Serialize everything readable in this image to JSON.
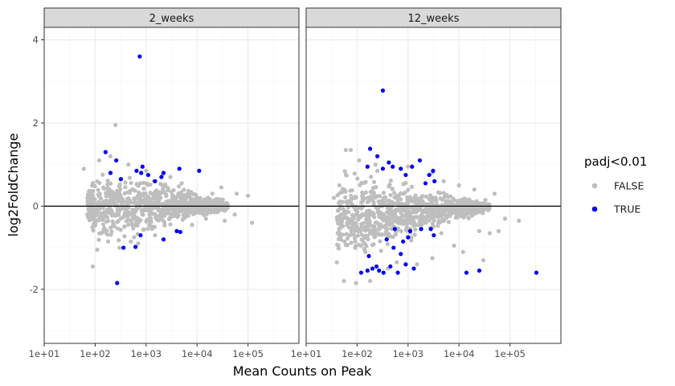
{
  "chart_data": {
    "type": "scatter",
    "xlabel": "Mean Counts on Peak",
    "ylabel": "log2FoldChange",
    "x_scale": "log10",
    "xlim": [
      10,
      1000000
    ],
    "ylim": [
      -3.3,
      4.3
    ],
    "x_ticks": [
      10,
      100,
      1000,
      10000,
      100000
    ],
    "x_tick_labels": [
      "1e+01",
      "1e+02",
      "1e+03",
      "1e+04",
      "1e+05"
    ],
    "y_ticks": [
      -2,
      0,
      2,
      4
    ],
    "y_tick_labels": [
      "-2",
      "0",
      "2",
      "4"
    ],
    "grid": true,
    "reference_line": 0,
    "legend": {
      "title": "padj<0.01",
      "placement": "right",
      "items": [
        {
          "label": "FALSE",
          "color": "#bebebe"
        },
        {
          "label": "TRUE",
          "color": "#0000ee"
        }
      ]
    },
    "panels": [
      {
        "title": "2_weeks",
        "series": [
          {
            "name": "FALSE",
            "color": "#bebebe",
            "points": [
              [
                250,
                1.95
              ],
              [
                90,
                -1.45
              ],
              [
                60,
                0.9
              ],
              [
                120,
                1.1
              ],
              [
                200,
                1.2
              ],
              [
                2100,
                0.75
              ],
              [
                100000,
                0.25
              ],
              [
                120000,
                -0.4
              ],
              [
                60000,
                0.3
              ],
              [
                55000,
                -0.2
              ],
              [
                30000,
                0.45
              ],
              [
                35000,
                -0.35
              ],
              [
                20000,
                0.3
              ],
              [
                15000,
                -0.3
              ],
              [
                70,
                -0.2
              ],
              [
                80,
                0.3
              ],
              [
                110,
                -1.05
              ],
              [
                300,
                -1.0
              ],
              [
                500,
                -0.85
              ],
              [
                1000,
                0.85
              ],
              [
                3000,
                0.7
              ],
              [
                5000,
                0.55
              ],
              [
                8000,
                -0.45
              ],
              [
                450,
                1.0
              ],
              [
                180,
                -0.85
              ],
              [
                700,
                -0.9
              ],
              [
                1500,
                -0.7
              ]
            ],
            "core": [
              [
                70,
                -0.3,
                0.4
              ],
              [
                100,
                -1.0,
                0.9
              ],
              [
                200,
                -1.0,
                1.0
              ],
              [
                400,
                -0.95,
                0.9
              ],
              [
                800,
                -0.8,
                0.85
              ],
              [
                1600,
                -0.7,
                0.75
              ],
              [
                3200,
                -0.6,
                0.6
              ],
              [
                6400,
                -0.5,
                0.5
              ],
              [
                12800,
                -0.35,
                0.35
              ],
              [
                25000,
                -0.25,
                0.25
              ],
              [
                40000,
                -0.12,
                0.12
              ]
            ]
          },
          {
            "name": "TRUE",
            "color": "#0000ee",
            "points": [
              [
                750,
                3.6
              ],
              [
                160,
                1.3
              ],
              [
                260,
                1.1
              ],
              [
                850,
                0.95
              ],
              [
                650,
                0.85
              ],
              [
                800,
                0.8
              ],
              [
                1100,
                0.75
              ],
              [
                2200,
                0.8
              ],
              [
                2000,
                0.7
              ],
              [
                4500,
                0.9
              ],
              [
                11000,
                0.85
              ],
              [
                200,
                0.8
              ],
              [
                320,
                0.65
              ],
              [
                1500,
                0.6
              ],
              [
                270,
                -1.85
              ],
              [
                360,
                -1.0
              ],
              [
                620,
                -0.98
              ],
              [
                780,
                -0.7
              ],
              [
                2200,
                -0.8
              ],
              [
                4700,
                -0.62
              ],
              [
                4000,
                -0.6
              ]
            ]
          }
        ]
      },
      {
        "title": "12_weeks",
        "series": [
          {
            "name": "FALSE",
            "color": "#bebebe",
            "points": [
              [
                95,
                -1.85
              ],
              [
                180,
                -1.8
              ],
              [
                55,
                -1.8
              ],
              [
                40,
                -1.35
              ],
              [
                60,
                1.35
              ],
              [
                75,
                1.35
              ],
              [
                110,
                1.1
              ],
              [
                230,
                1.0
              ],
              [
                3000,
                0.8
              ],
              [
                5000,
                0.6
              ],
              [
                10000,
                0.5
              ],
              [
                20000,
                0.4
              ],
              [
                50000,
                0.3
              ],
              [
                80000,
                -0.3
              ],
              [
                60000,
                -0.6
              ],
              [
                40000,
                -0.65
              ],
              [
                25000,
                -0.6
              ],
              [
                150000,
                -0.35
              ],
              [
                30000,
                -1.3
              ],
              [
                12000,
                -1.1
              ],
              [
                8000,
                -0.95
              ],
              [
                3000,
                -1.25
              ],
              [
                1500,
                -1.4
              ],
              [
                4500,
                -0.65
              ],
              [
                1000,
                0.95
              ],
              [
                33000,
                0.15
              ],
              [
                400,
                -1.5
              ],
              [
                600,
                -1.35
              ],
              [
                250,
                0.85
              ],
              [
                45,
                0.5
              ],
              [
                35,
                0.2
              ]
            ],
            "core": [
              [
                40,
                -1.3,
                0.85
              ],
              [
                80,
                -1.6,
                1.2
              ],
              [
                160,
                -1.6,
                1.1
              ],
              [
                320,
                -1.4,
                1.0
              ],
              [
                640,
                -1.1,
                0.8
              ],
              [
                1280,
                -0.9,
                0.65
              ],
              [
                2560,
                -0.7,
                0.5
              ],
              [
                5120,
                -0.55,
                0.4
              ],
              [
                10240,
                -0.4,
                0.3
              ],
              [
                20000,
                -0.28,
                0.2
              ],
              [
                40000,
                -0.15,
                0.12
              ]
            ]
          },
          {
            "name": "TRUE",
            "color": "#0000ee",
            "points": [
              [
                320,
                2.78
              ],
              [
                180,
                1.38
              ],
              [
                250,
                1.2
              ],
              [
                420,
                1.05
              ],
              [
                500,
                0.95
              ],
              [
                320,
                0.9
              ],
              [
                720,
                0.9
              ],
              [
                1200,
                0.95
              ],
              [
                1700,
                1.1
              ],
              [
                2600,
                0.75
              ],
              [
                3100,
                0.85
              ],
              [
                3300,
                0.6
              ],
              [
                160,
                0.95
              ],
              [
                900,
                0.75
              ],
              [
                2200,
                0.55
              ],
              [
                380,
                -0.8
              ],
              [
                550,
                -0.55
              ],
              [
                800,
                -0.85
              ],
              [
                1100,
                -0.6
              ],
              [
                1800,
                -0.55
              ],
              [
                2800,
                -0.55
              ],
              [
                3200,
                -0.7
              ],
              [
                1000,
                -0.75
              ],
              [
                520,
                -1.0
              ],
              [
                170,
                -1.2
              ],
              [
                240,
                -1.45
              ],
              [
                270,
                -1.55
              ],
              [
                200,
                -1.5
              ],
              [
                330,
                -1.6
              ],
              [
                120,
                -1.6
              ],
              [
                160,
                -1.55
              ],
              [
                450,
                -1.45
              ],
              [
                630,
                -1.6
              ],
              [
                900,
                -1.4
              ],
              [
                1300,
                -1.5
              ],
              [
                720,
                -1.15
              ],
              [
                14000,
                -1.6
              ],
              [
                25000,
                -1.55
              ],
              [
                330000,
                -1.6
              ]
            ]
          }
        ]
      }
    ]
  }
}
